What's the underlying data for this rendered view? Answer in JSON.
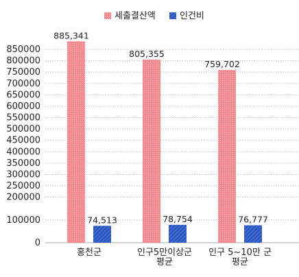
{
  "chart_data": {
    "type": "bar",
    "categories": [
      [
        "홍천군"
      ],
      [
        "인구5만이상군",
        "평균"
      ],
      [
        "인구 5~10만 군",
        "평균"
      ]
    ],
    "series": [
      {
        "name": "세출결산액",
        "values": [
          885341,
          805355,
          759702
        ],
        "labels": [
          "885,341",
          "805,355",
          "759,702"
        ],
        "color": "#f07f86",
        "pattern": "dots"
      },
      {
        "name": "인건비",
        "values": [
          74513,
          78754,
          76777
        ],
        "labels": [
          "74,513",
          "78,754",
          "76,777"
        ],
        "color": "#3e6fd6",
        "pattern": "hatch"
      }
    ],
    "ylim": [
      0,
      850000
    ],
    "yticks": [
      0,
      100000,
      200000,
      250000,
      300000,
      350000,
      400000,
      450000,
      500000,
      550000,
      600000,
      650000,
      700000,
      750000,
      800000,
      850000
    ],
    "grid": true,
    "legend_position": "top"
  }
}
